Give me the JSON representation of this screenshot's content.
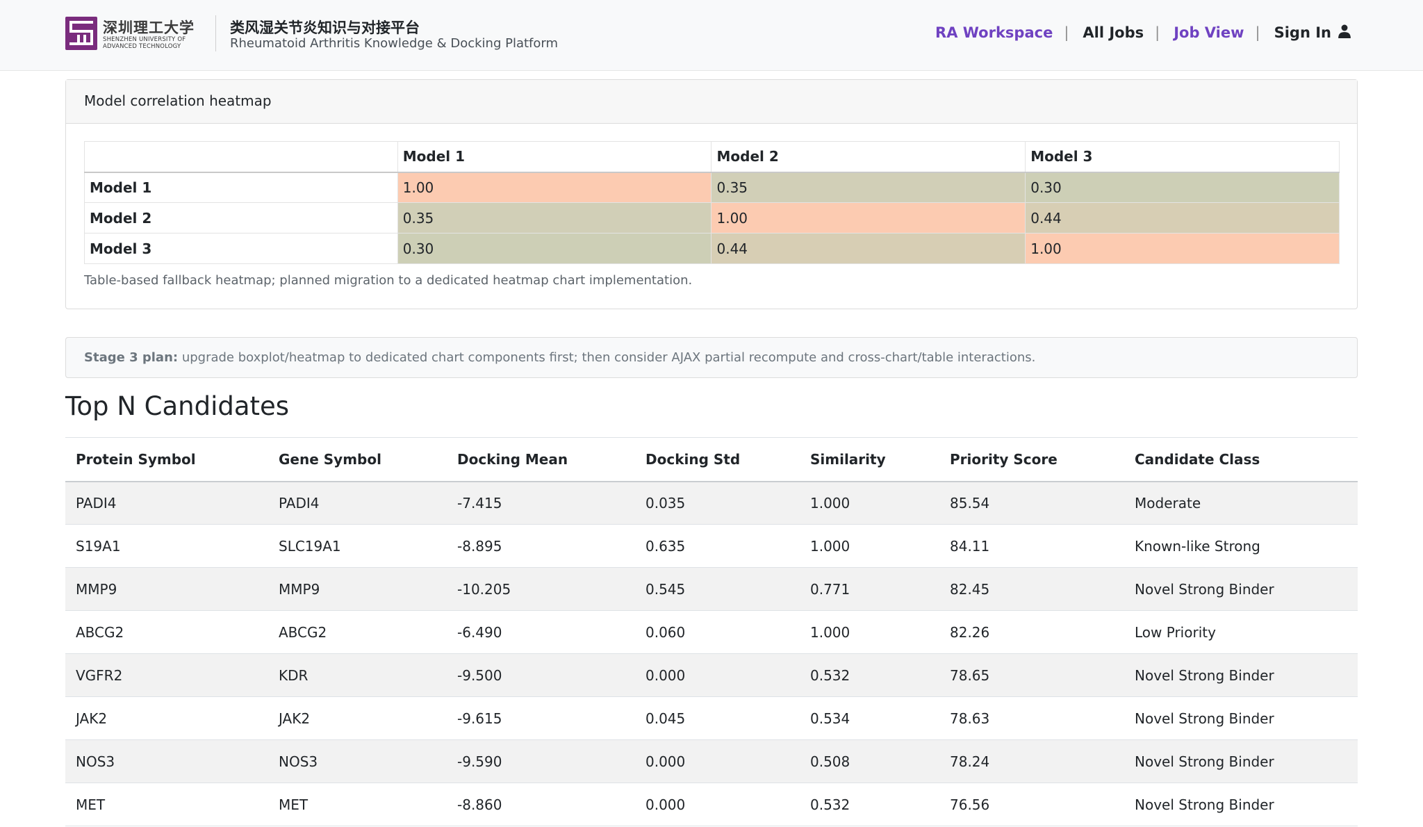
{
  "navbar": {
    "logo": {
      "cn": "深圳理工大学",
      "en_line1": "SHENZHEN UNIVERSITY OF",
      "en_line2": "ADVANCED TECHNOLOGY"
    },
    "brand_cn": "类风湿关节炎知识与对接平台",
    "brand_en": "Rheumatoid Arthritis Knowledge & Docking Platform",
    "links": {
      "workspace": "RA Workspace",
      "all_jobs": "All Jobs",
      "job_view": "Job View",
      "sign_in": "Sign In"
    },
    "separator": "|"
  },
  "heatmap": {
    "title": "Model correlation heatmap",
    "columns": [
      "Model 1",
      "Model 2",
      "Model 3"
    ],
    "rows": [
      {
        "label": "Model 1",
        "values": [
          "1.00",
          "0.35",
          "0.30"
        ]
      },
      {
        "label": "Model 2",
        "values": [
          "0.35",
          "1.00",
          "0.44"
        ]
      },
      {
        "label": "Model 3",
        "values": [
          "0.30",
          "0.44",
          "1.00"
        ]
      }
    ],
    "cell_colors": {
      "1.00": "#fccbb1",
      "0.44": "#d7ceb4",
      "0.35": "#d1cfb7",
      "0.30": "#cdcfb6"
    },
    "note": "Table-based fallback heatmap; planned migration to a dedicated heatmap chart implementation."
  },
  "plan": {
    "label": "Stage 3 plan:",
    "text": " upgrade boxplot/heatmap to dedicated chart components first; then consider AJAX partial recompute and cross-chart/table interactions."
  },
  "candidates": {
    "title": "Top N Candidates",
    "headers": [
      "Protein Symbol",
      "Gene Symbol",
      "Docking Mean",
      "Docking Std",
      "Similarity",
      "Priority Score",
      "Candidate Class"
    ],
    "rows": [
      [
        "PADI4",
        "PADI4",
        "-7.415",
        "0.035",
        "1.000",
        "85.54",
        "Moderate"
      ],
      [
        "S19A1",
        "SLC19A1",
        "-8.895",
        "0.635",
        "1.000",
        "84.11",
        "Known-like Strong"
      ],
      [
        "MMP9",
        "MMP9",
        "-10.205",
        "0.545",
        "0.771",
        "82.45",
        "Novel Strong Binder"
      ],
      [
        "ABCG2",
        "ABCG2",
        "-6.490",
        "0.060",
        "1.000",
        "82.26",
        "Low Priority"
      ],
      [
        "VGFR2",
        "KDR",
        "-9.500",
        "0.000",
        "0.532",
        "78.65",
        "Novel Strong Binder"
      ],
      [
        "JAK2",
        "JAK2",
        "-9.615",
        "0.045",
        "0.534",
        "78.63",
        "Novel Strong Binder"
      ],
      [
        "NOS3",
        "NOS3",
        "-9.590",
        "0.000",
        "0.508",
        "78.24",
        "Novel Strong Binder"
      ],
      [
        "MET",
        "MET",
        "-8.860",
        "0.000",
        "0.532",
        "76.56",
        "Novel Strong Binder"
      ]
    ]
  },
  "colors": {
    "accent": "#6f42c1",
    "navbar_bg": "#f8f9fa",
    "logo": "#7a2c7d"
  }
}
